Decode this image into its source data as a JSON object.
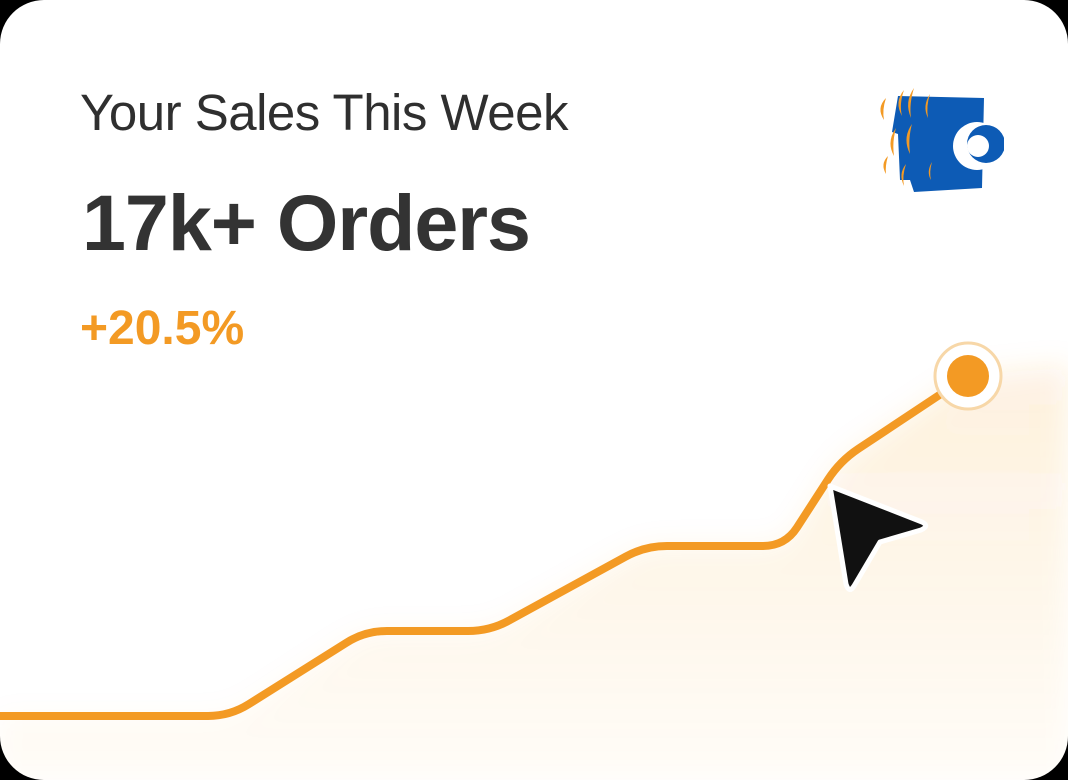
{
  "card": {
    "title": "Your Sales This Week",
    "orders": "17k+ Orders",
    "change": "+20.5%"
  },
  "colors": {
    "accent": "#F39A24",
    "text": "#2F2F2F",
    "logo_blue": "#0D5BB5"
  },
  "icons": {
    "logo": "crescent-moons-logo-icon",
    "cursor": "mouse-pointer-icon",
    "endpoint": "highlight-dot"
  },
  "chart_data": {
    "type": "line",
    "title": "",
    "xlabel": "",
    "ylabel": "",
    "grid": false,
    "x": [
      0,
      1,
      2,
      3,
      4,
      5,
      6,
      7
    ],
    "values": [
      0,
      0,
      1,
      1,
      2,
      2,
      3,
      4
    ],
    "ylim": [
      0,
      4
    ]
  }
}
